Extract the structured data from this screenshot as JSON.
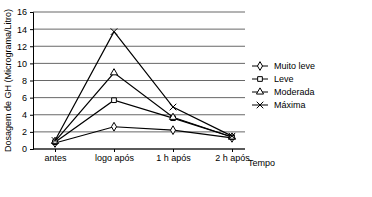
{
  "chart_data": {
    "type": "line",
    "y_label": "Dosagem de GH (Micrograma/Litro)",
    "x_label": "Tempo",
    "categories": [
      "antes",
      "logo após",
      "1 h após",
      "2 h após"
    ],
    "series": [
      {
        "name": "Muito leve",
        "color": "#000000",
        "marker": "diamond",
        "values": [
          0.7,
          2.6,
          2.2,
          1.3
        ]
      },
      {
        "name": "Leve",
        "color": "#000000",
        "marker": "square",
        "values": [
          0.8,
          5.7,
          3.6,
          1.4
        ]
      },
      {
        "name": "Moderada",
        "color": "#000000",
        "marker": "triangle",
        "values": [
          0.9,
          8.9,
          3.7,
          1.4
        ]
      },
      {
        "name": "Máxima",
        "color": "#000000",
        "marker": "x",
        "values": [
          1.0,
          13.7,
          4.9,
          1.5
        ]
      }
    ],
    "ylim": [
      0,
      16
    ],
    "yticks": [
      0,
      2,
      4,
      6,
      8,
      10,
      12,
      14,
      16
    ],
    "grid": true,
    "legend": "right"
  }
}
